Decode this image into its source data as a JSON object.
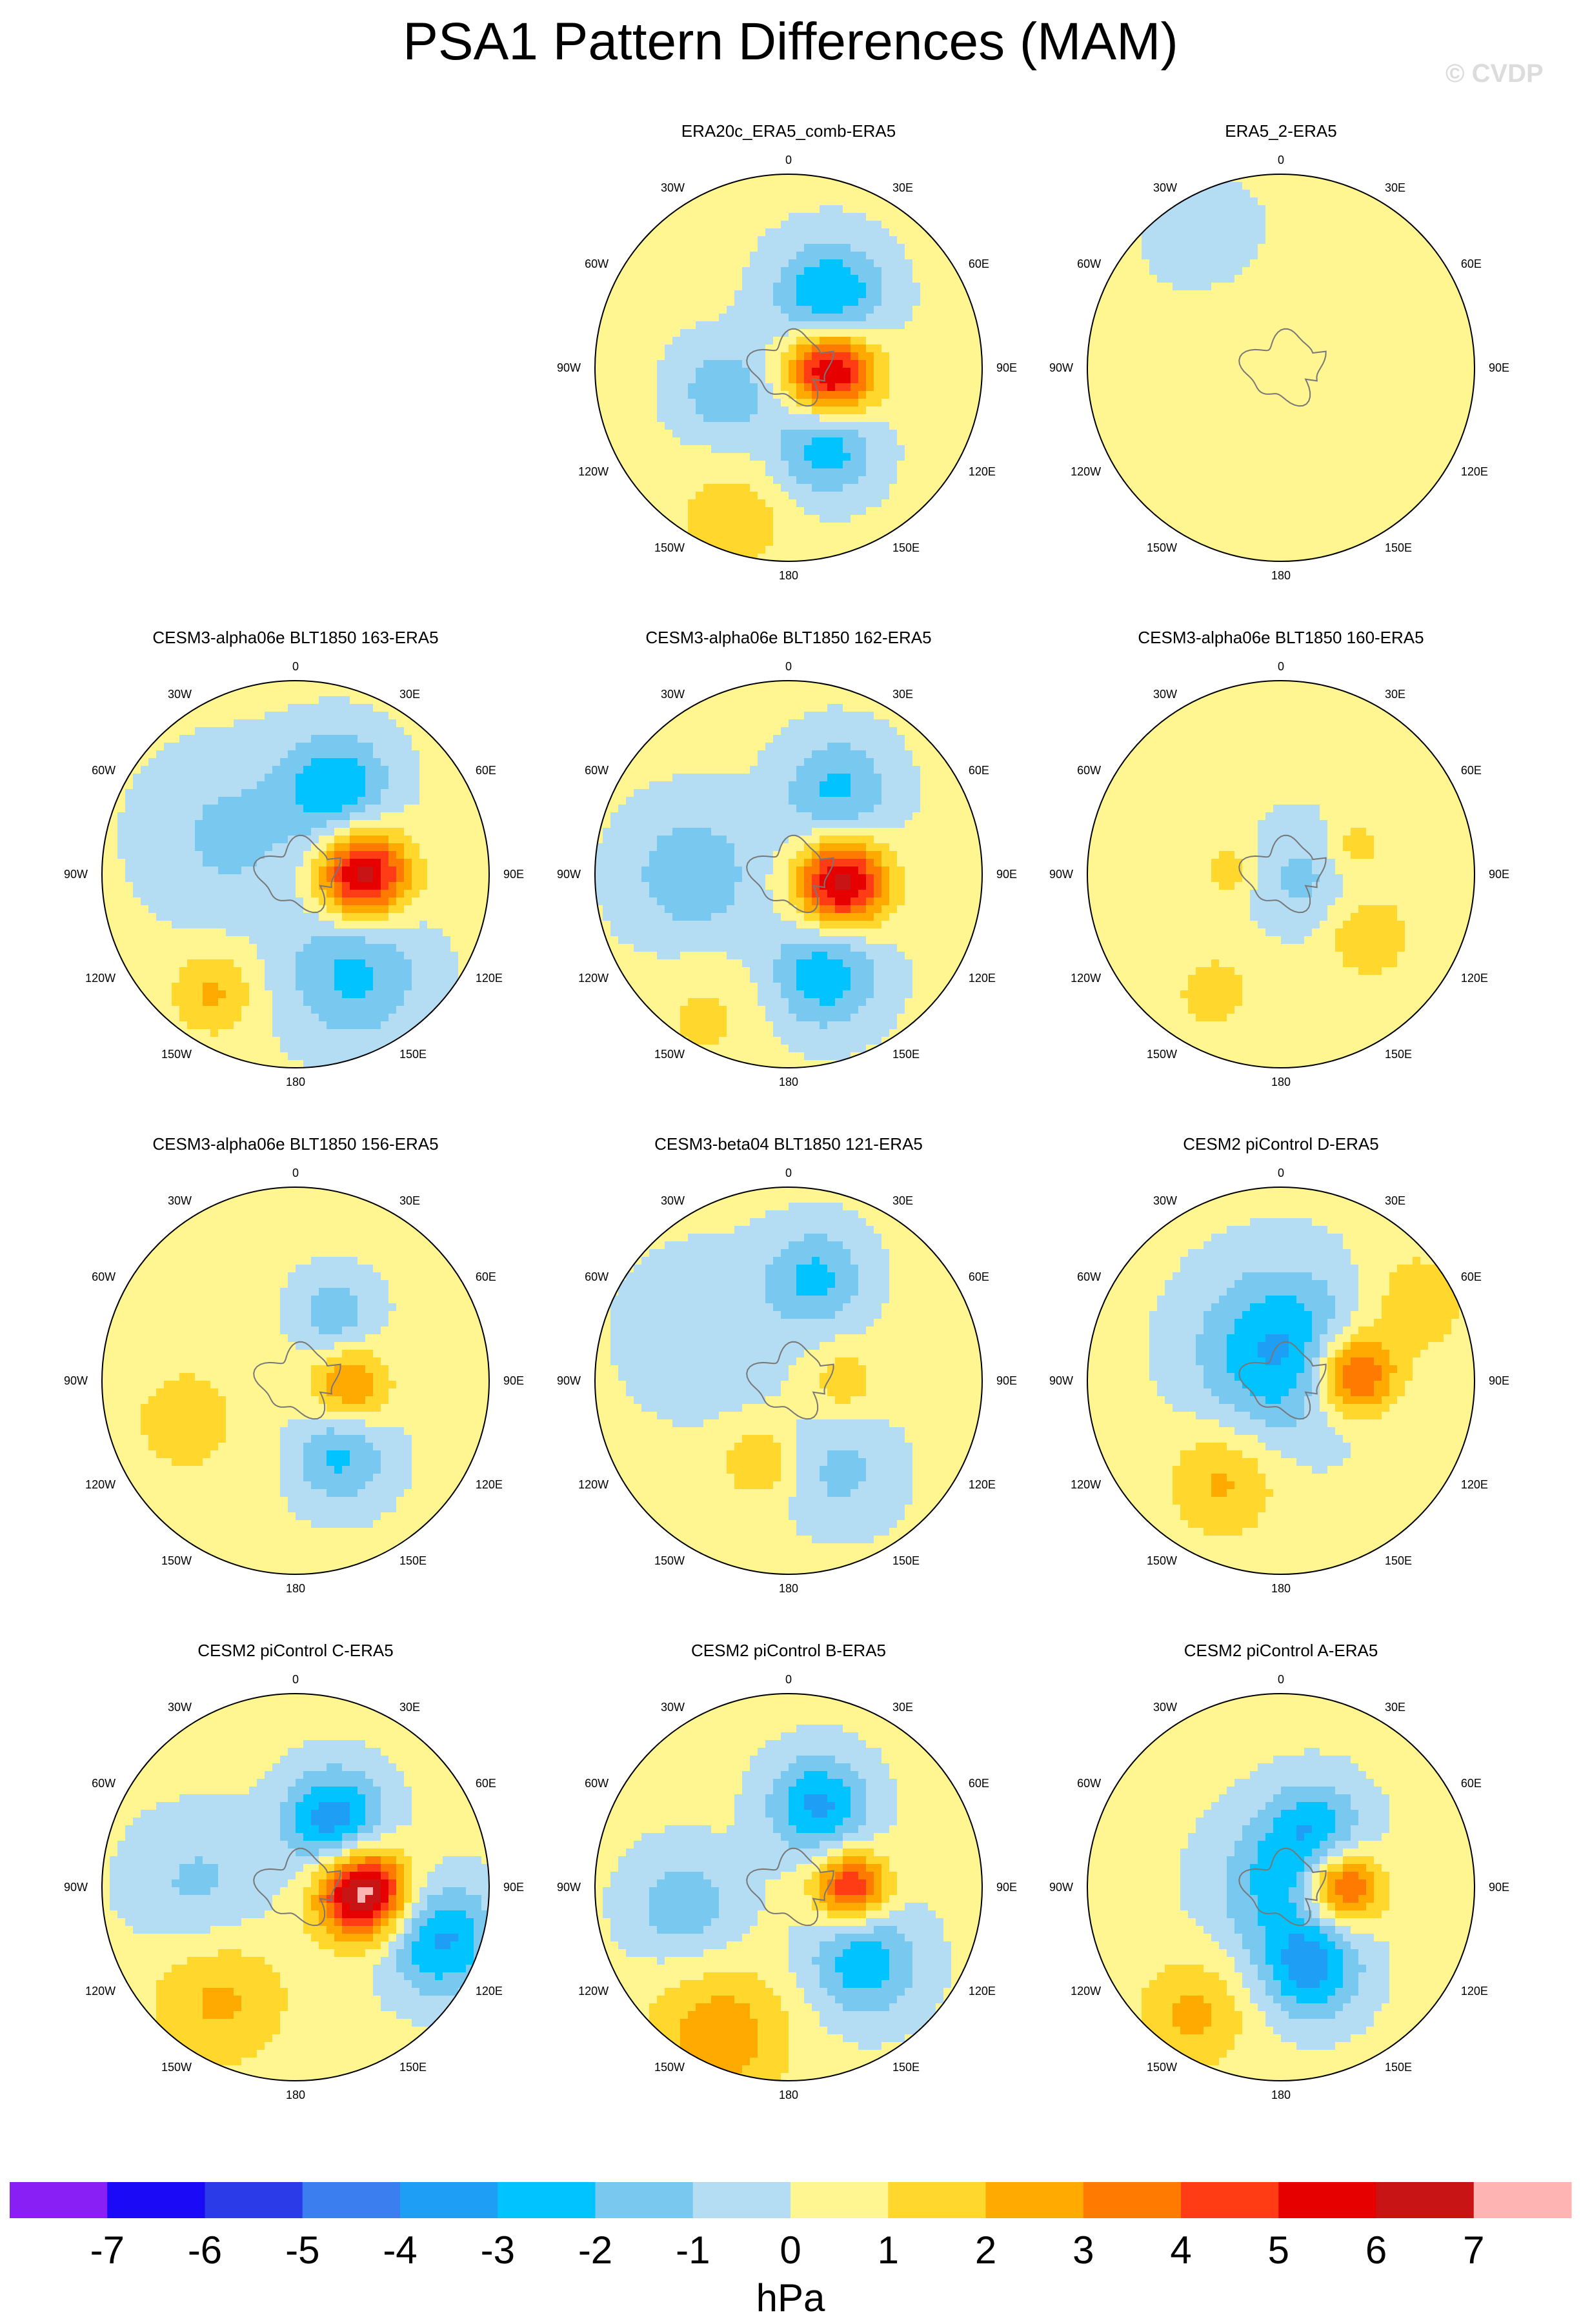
{
  "title": "PSA1 Pattern Differences (MAM)",
  "credit": "© CVDP",
  "lon_labels": [
    "0",
    "30E",
    "60E",
    "90E",
    "120E",
    "150E",
    "180",
    "150W",
    "120W",
    "90W",
    "60W",
    "30W"
  ],
  "panels": [
    {
      "title": "ERA20c_ERA5_comb-ERA5",
      "row": 0,
      "col": 1,
      "blobs": [
        {
          "lon": 95,
          "r": 0.22,
          "amp": 6.5,
          "s": 0.16
        },
        {
          "lon": 30,
          "r": 0.42,
          "amp": -3.5,
          "s": 0.2
        },
        {
          "lon": 155,
          "r": 0.45,
          "amp": -3,
          "s": 0.18
        },
        {
          "lon": 250,
          "r": 0.35,
          "amp": -2,
          "s": 0.18
        },
        {
          "lon": 200,
          "r": 0.85,
          "amp": 1.5,
          "s": 0.2
        }
      ]
    },
    {
      "title": "ERA5_2-ERA5",
      "row": 0,
      "col": 2,
      "blobs": [
        {
          "lon": 0,
          "r": 0.0,
          "amp": 0.4,
          "s": 0.35
        },
        {
          "lon": 60,
          "r": 0.8,
          "amp": 0.6,
          "s": 0.2
        },
        {
          "lon": 200,
          "r": 0.6,
          "amp": 0.6,
          "s": 0.2
        },
        {
          "lon": 330,
          "r": 0.75,
          "amp": -0.5,
          "s": 0.3
        }
      ]
    },
    {
      "title": "CESM3-alpha06e BLT1850 163-ERA5",
      "row": 1,
      "col": 0,
      "blobs": [
        {
          "lon": 90,
          "r": 0.35,
          "amp": 6.5,
          "s": 0.16
        },
        {
          "lon": 25,
          "r": 0.5,
          "amp": -3,
          "s": 0.2
        },
        {
          "lon": 150,
          "r": 0.6,
          "amp": -2.5,
          "s": 0.25
        },
        {
          "lon": 215,
          "r": 0.75,
          "amp": 2,
          "s": 0.15
        },
        {
          "lon": 300,
          "r": 0.4,
          "amp": -1.5,
          "s": 0.3
        }
      ]
    },
    {
      "title": "CESM3-alpha06e BLT1850 162-ERA5",
      "row": 1,
      "col": 1,
      "blobs": [
        {
          "lon": 100,
          "r": 0.28,
          "amp": 6.5,
          "s": 0.16
        },
        {
          "lon": 30,
          "r": 0.5,
          "amp": -2.5,
          "s": 0.2
        },
        {
          "lon": 160,
          "r": 0.55,
          "amp": -3,
          "s": 0.2
        },
        {
          "lon": 270,
          "r": 0.5,
          "amp": -2,
          "s": 0.25
        },
        {
          "lon": 210,
          "r": 0.85,
          "amp": 1,
          "s": 0.2
        }
      ]
    },
    {
      "title": "CESM3-alpha06e BLT1850 160-ERA5",
      "row": 1,
      "col": 2,
      "blobs": [
        {
          "lon": 125,
          "r": 0.55,
          "amp": 1.8,
          "s": 0.15
        },
        {
          "lon": 70,
          "r": 0.4,
          "amp": 1.5,
          "s": 0.1
        },
        {
          "lon": 275,
          "r": 0.25,
          "amp": 1.5,
          "s": 0.1
        },
        {
          "lon": 100,
          "r": 0.1,
          "amp": -1.5,
          "s": 0.2
        },
        {
          "lon": 210,
          "r": 0.7,
          "amp": 1,
          "s": 0.2
        }
      ]
    },
    {
      "title": "CESM3-alpha06e BLT1850 156-ERA5",
      "row": 2,
      "col": 0,
      "blobs": [
        {
          "lon": 95,
          "r": 0.28,
          "amp": 3,
          "s": 0.14
        },
        {
          "lon": 150,
          "r": 0.45,
          "amp": -2.5,
          "s": 0.18
        },
        {
          "lon": 30,
          "r": 0.4,
          "amp": -2,
          "s": 0.15
        },
        {
          "lon": 250,
          "r": 0.6,
          "amp": 1,
          "s": 0.3
        }
      ]
    },
    {
      "title": "CESM3-beta04 BLT1850 121-ERA5",
      "row": 2,
      "col": 1,
      "blobs": [
        {
          "lon": 90,
          "r": 0.28,
          "amp": 1.5,
          "s": 0.12
        },
        {
          "lon": 15,
          "r": 0.55,
          "amp": -2.5,
          "s": 0.18
        },
        {
          "lon": 200,
          "r": 0.45,
          "amp": 1.8,
          "s": 0.13
        },
        {
          "lon": 150,
          "r": 0.55,
          "amp": -1.5,
          "s": 0.2
        },
        {
          "lon": 300,
          "r": 0.5,
          "amp": -1,
          "s": 0.3
        }
      ]
    },
    {
      "title": "CESM2 piControl D-ERA5",
      "row": 2,
      "col": 2,
      "blobs": [
        {
          "lon": 85,
          "r": 0.38,
          "amp": 5,
          "s": 0.15
        },
        {
          "lon": 0,
          "r": 0.15,
          "amp": -3.5,
          "s": 0.3
        },
        {
          "lon": 210,
          "r": 0.6,
          "amp": 2,
          "s": 0.2
        },
        {
          "lon": 60,
          "r": 0.8,
          "amp": 1.5,
          "s": 0.2
        }
      ]
    },
    {
      "title": "CESM2 piControl C-ERA5",
      "row": 3,
      "col": 0,
      "blobs": [
        {
          "lon": 95,
          "r": 0.35,
          "amp": 7.5,
          "s": 0.16
        },
        {
          "lon": 30,
          "r": 0.4,
          "amp": -4,
          "s": 0.18
        },
        {
          "lon": 110,
          "r": 0.8,
          "amp": -3.5,
          "s": 0.2
        },
        {
          "lon": 215,
          "r": 0.7,
          "amp": 2,
          "s": 0.25
        },
        {
          "lon": 270,
          "r": 0.5,
          "amp": -1.5,
          "s": 0.25
        }
      ]
    },
    {
      "title": "CESM2 piControl B-ERA5",
      "row": 3,
      "col": 1,
      "blobs": [
        {
          "lon": 90,
          "r": 0.32,
          "amp": 5,
          "s": 0.13
        },
        {
          "lon": 20,
          "r": 0.45,
          "amp": -3.5,
          "s": 0.18
        },
        {
          "lon": 135,
          "r": 0.55,
          "amp": -3,
          "s": 0.2
        },
        {
          "lon": 260,
          "r": 0.55,
          "amp": -2,
          "s": 0.2
        },
        {
          "lon": 205,
          "r": 0.85,
          "amp": 2.5,
          "s": 0.25
        }
      ]
    },
    {
      "title": "CESM2 piControl A-ERA5",
      "row": 3,
      "col": 2,
      "blobs": [
        {
          "lon": 90,
          "r": 0.32,
          "amp": 5,
          "s": 0.14
        },
        {
          "lon": 30,
          "r": 0.35,
          "amp": -2.5,
          "s": 0.18
        },
        {
          "lon": 160,
          "r": 0.45,
          "amp": -3.5,
          "s": 0.18
        },
        {
          "lon": 80,
          "r": 0.0,
          "amp": -2.5,
          "s": 0.25
        },
        {
          "lon": 215,
          "r": 0.8,
          "amp": 2,
          "s": 0.2
        }
      ]
    }
  ],
  "colorbar": {
    "colors": [
      "#8a1ff5",
      "#1a0af5",
      "#2b3be8",
      "#3a7ef0",
      "#1e9ef5",
      "#00c3ff",
      "#78c8f0",
      "#b4dcf3",
      "#fff591",
      "#ffd72d",
      "#ffaa00",
      "#ff7a00",
      "#ff3c14",
      "#e60000",
      "#c81414",
      "#ffb4b4"
    ],
    "levels": [
      -8,
      -7,
      -6,
      -5,
      -4,
      -3,
      -2,
      -1,
      0,
      1,
      2,
      3,
      4,
      5,
      6,
      7,
      8
    ],
    "tick_labels": [
      "-7",
      "-6",
      "-5",
      "-4",
      "-3",
      "-2",
      "-1",
      "0",
      "1",
      "2",
      "3",
      "4",
      "5",
      "6",
      "7"
    ],
    "unit": "hPa"
  }
}
